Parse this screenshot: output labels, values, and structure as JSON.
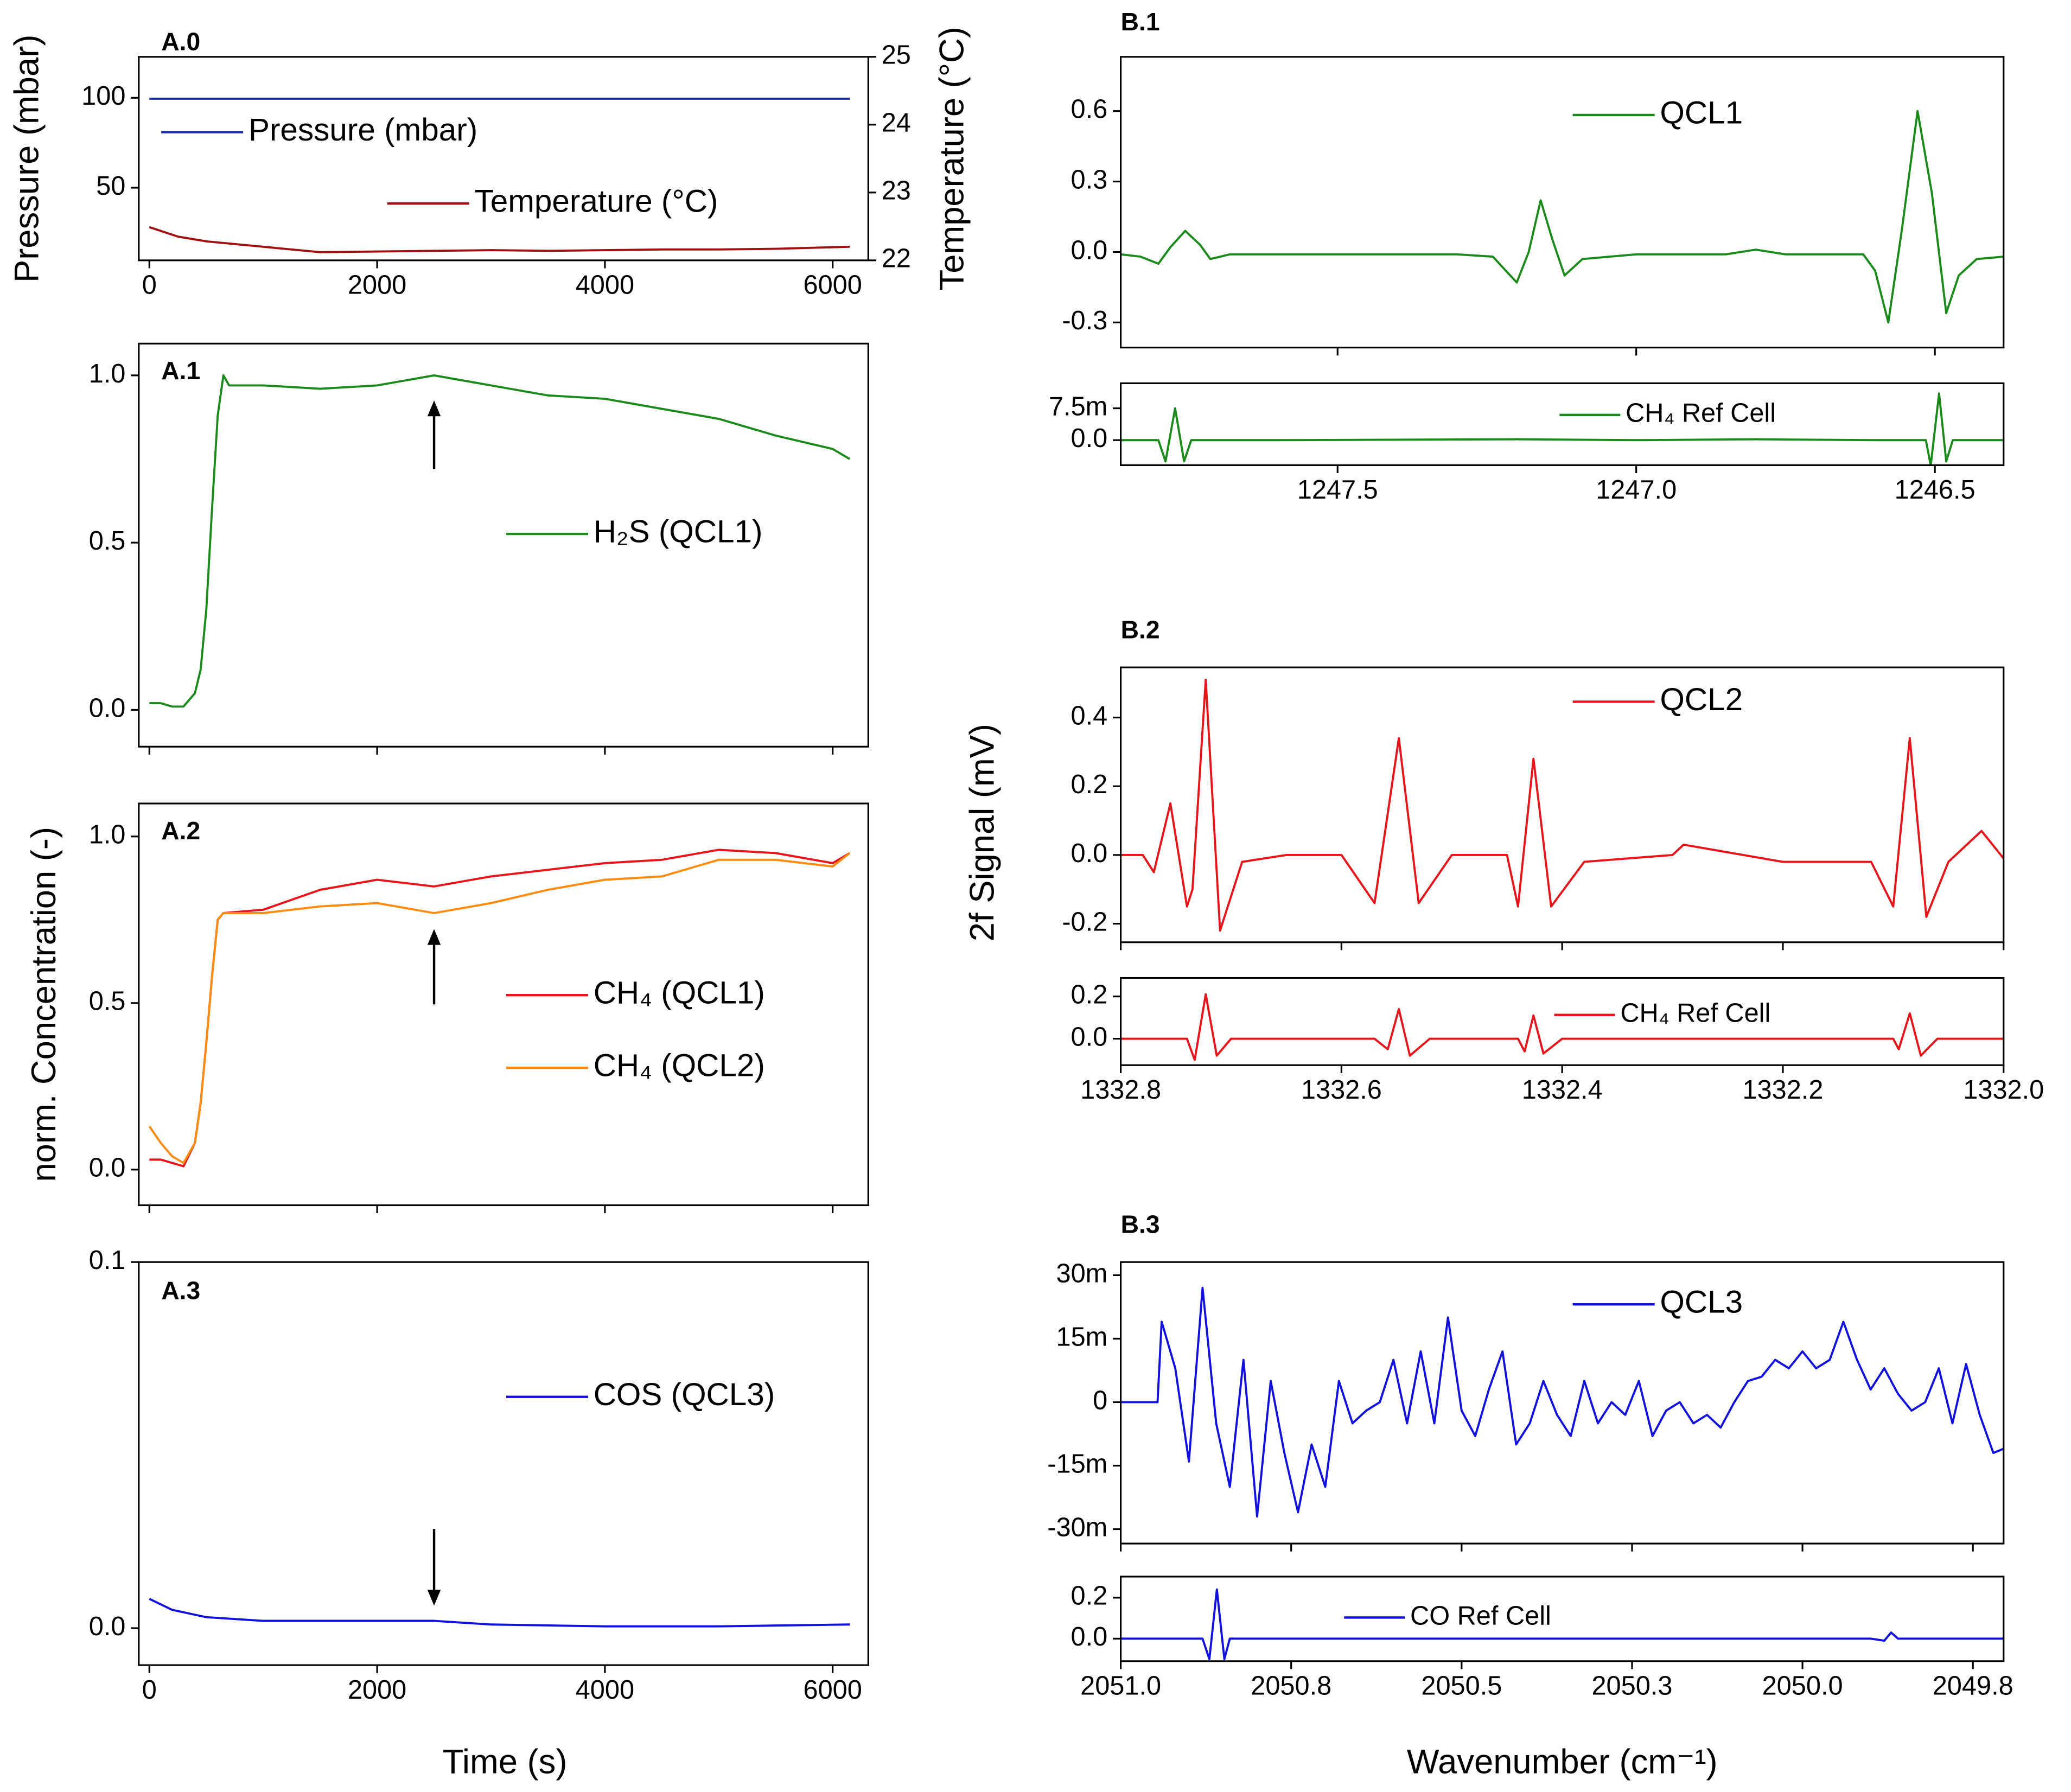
{
  "shared_labels": {
    "a_ylabel": "norm. Concentration (-)",
    "a_xlabel": "Time (s)",
    "b_ylabel": "2f Signal (mV)",
    "b_xlabel": "Wavenumber (cm⁻¹)"
  },
  "chart_data": [
    {
      "type": "line",
      "label": "A.0",
      "ylabel": "Pressure (mbar)",
      "y2label": "Temperature (°C)",
      "xlim": [
        -93,
        6313
      ],
      "xticks": [
        0,
        2000,
        4000,
        6000
      ],
      "ylim": [
        9.6,
        122.8
      ],
      "yticks": [
        50,
        100
      ],
      "y2lim": [
        22,
        25
      ],
      "y2ticks": [
        22,
        23,
        24,
        25
      ],
      "x": [
        0,
        250,
        500,
        1000,
        1500,
        2000,
        2500,
        3000,
        3500,
        4000,
        4500,
        5000,
        5500,
        6150
      ],
      "series": [
        {
          "name": "Pressure (mbar)",
          "color": "#1a2aa0",
          "values": [
            99.5,
            99.5,
            99.5,
            99.5,
            99.5,
            99.5,
            99.5,
            99.5,
            99.5,
            99.5,
            99.5,
            99.5,
            99.5,
            99.5
          ]
        },
        {
          "name": "Temperature (°C)",
          "color": "#a01010",
          "axis": "y2",
          "values": [
            22.49,
            22.35,
            22.28,
            22.2,
            22.12,
            22.13,
            22.14,
            22.15,
            22.14,
            22.15,
            22.16,
            22.16,
            22.17,
            22.2
          ]
        }
      ]
    },
    {
      "type": "line",
      "label": "A.1",
      "xlim": [
        -93,
        6313
      ],
      "xticks": [
        0,
        2000,
        4000,
        6000
      ],
      "xtick_labels": false,
      "ylim": [
        -0.11,
        1.095
      ],
      "yticks": [
        {
          "value": 0,
          "label": "0.0"
        },
        0.5,
        {
          "value": 1,
          "label": "1.0"
        }
      ],
      "arrow_x": 2500,
      "arrow_dir": "up",
      "x": [
        0,
        100,
        200,
        300,
        400,
        450,
        500,
        550,
        600,
        650,
        700,
        1000,
        1500,
        2000,
        2500,
        3000,
        3500,
        4000,
        4500,
        5000,
        5500,
        6000,
        6150
      ],
      "series": [
        {
          "name": "H₂S (QCL1)",
          "color": "#1a8a1a",
          "values": [
            0.02,
            0.02,
            0.01,
            0.01,
            0.05,
            0.12,
            0.3,
            0.6,
            0.88,
            1.0,
            0.97,
            0.97,
            0.96,
            0.97,
            1.0,
            0.97,
            0.94,
            0.93,
            0.9,
            0.87,
            0.82,
            0.78,
            0.75
          ]
        }
      ]
    },
    {
      "type": "line",
      "label": "A.2",
      "xlim": [
        -93,
        6313
      ],
      "xticks": [
        0,
        2000,
        4000,
        6000
      ],
      "xtick_labels": false,
      "ylim": [
        -0.107,
        1.099
      ],
      "yticks": [
        {
          "value": 0,
          "label": "0.0"
        },
        0.5,
        {
          "value": 1,
          "label": "1.0"
        }
      ],
      "arrow_x": 2500,
      "arrow_dir": "up",
      "x": [
        0,
        100,
        200,
        300,
        400,
        450,
        500,
        550,
        600,
        650,
        1000,
        1500,
        2000,
        2500,
        3000,
        3500,
        4000,
        4500,
        5000,
        5500,
        6000,
        6150
      ],
      "series": [
        {
          "name": "CH₄ (QCL1)",
          "color": "#e8141a",
          "values": [
            0.03,
            0.03,
            0.02,
            0.01,
            0.08,
            0.2,
            0.38,
            0.58,
            0.75,
            0.77,
            0.78,
            0.84,
            0.87,
            0.85,
            0.88,
            0.9,
            0.92,
            0.93,
            0.96,
            0.95,
            0.92,
            0.95
          ]
        },
        {
          "name": "CH₄ (QCL2)",
          "color": "#ff8c10",
          "values": [
            0.13,
            0.08,
            0.04,
            0.02,
            0.08,
            0.2,
            0.38,
            0.58,
            0.75,
            0.77,
            0.77,
            0.79,
            0.8,
            0.77,
            0.8,
            0.84,
            0.87,
            0.88,
            0.93,
            0.93,
            0.91,
            0.95
          ]
        }
      ]
    },
    {
      "type": "line",
      "label": "A.3",
      "xlim": [
        -93,
        6313
      ],
      "xticks": [
        0,
        2000,
        4000,
        6000
      ],
      "ylim": [
        -0.0101,
        0.1
      ],
      "yticks": [
        {
          "value": 0,
          "label": "0.0"
        },
        0.1
      ],
      "arrow_x": 2500,
      "arrow_dir": "down",
      "x": [
        0,
        200,
        500,
        1000,
        1500,
        2000,
        2500,
        3000,
        4000,
        5000,
        6150
      ],
      "series": [
        {
          "name": "COS (QCL3)",
          "color": "#1010e0",
          "values": [
            0.008,
            0.005,
            0.003,
            0.002,
            0.002,
            0.002,
            0.002,
            0.001,
            0.0005,
            0.0005,
            0.001
          ]
        }
      ]
    },
    {
      "type": "line",
      "label": "B.1",
      "xlim": [
        1247.863,
        1246.385
      ],
      "xticks": [
        1247.5,
        {
          "value": 1247,
          "label": "1247.0"
        },
        1246.5
      ],
      "xtick_labels": false,
      "ylim": [
        -0.407,
        0.831
      ],
      "yticks": [
        -0.3,
        {
          "value": 0,
          "label": "0.0"
        },
        0.3,
        0.6
      ],
      "x": [
        1247.863,
        1247.83,
        1247.8,
        1247.78,
        1247.755,
        1247.73,
        1247.713,
        1247.68,
        1247.5,
        1247.3,
        1247.24,
        1247.2,
        1247.18,
        1247.16,
        1247.14,
        1247.12,
        1247.09,
        1247.0,
        1246.85,
        1246.8,
        1246.75,
        1246.62,
        1246.6,
        1246.578,
        1246.555,
        1246.529,
        1246.505,
        1246.481,
        1246.46,
        1246.43,
        1246.385
      ],
      "series": [
        {
          "name": "QCL1",
          "color": "#1a8a1a",
          "values": [
            -0.01,
            -0.02,
            -0.05,
            0.02,
            0.09,
            0.03,
            -0.03,
            -0.01,
            -0.01,
            -0.01,
            -0.02,
            -0.13,
            0.0,
            0.22,
            0.05,
            -0.1,
            -0.03,
            -0.01,
            -0.01,
            0.01,
            -0.01,
            -0.01,
            -0.08,
            -0.3,
            0.1,
            0.6,
            0.25,
            -0.26,
            -0.1,
            -0.03,
            -0.02
          ]
        }
      ]
    },
    {
      "type": "line",
      "xlim": [
        1247.863,
        1246.385
      ],
      "xticks": [
        1247.5,
        {
          "value": 1247,
          "label": "1247.0"
        },
        1246.5
      ],
      "ylim": [
        -0.0059,
        0.0134
      ],
      "yticks": [
        {
          "value": 0,
          "label": "0.0"
        },
        {
          "value": 0.0075,
          "label": "7.5m"
        }
      ],
      "legend_size": "small",
      "x": [
        1247.863,
        1247.8,
        1247.788,
        1247.772,
        1247.757,
        1247.745,
        1247.6,
        1247.2,
        1247.0,
        1246.8,
        1246.6,
        1246.515,
        1246.507,
        1246.493,
        1246.481,
        1246.47,
        1246.385
      ],
      "series": [
        {
          "name": "CH₄ Ref Cell",
          "color": "#1a8a1a",
          "values": [
            0,
            0,
            -0.005,
            0.0075,
            -0.005,
            0,
            0,
            0.0002,
            0,
            0.0002,
            0,
            0,
            -0.006,
            0.011,
            -0.005,
            0,
            0
          ]
        }
      ]
    },
    {
      "type": "line",
      "label": "B.2",
      "xlim": [
        1332.8,
        1332.0
      ],
      "xticks": [
        1332.8,
        1332.6,
        1332.4,
        1332.2,
        {
          "value": 1332,
          "label": "1332.0"
        }
      ],
      "xtick_labels": false,
      "ylim": [
        -0.254,
        0.546
      ],
      "yticks": [
        -0.2,
        {
          "value": 0,
          "label": "0.0"
        },
        0.2,
        0.4
      ],
      "x": [
        1332.8,
        1332.78,
        1332.77,
        1332.755,
        1332.74,
        1332.735,
        1332.723,
        1332.71,
        1332.69,
        1332.65,
        1332.6,
        1332.57,
        1332.548,
        1332.53,
        1332.5,
        1332.45,
        1332.44,
        1332.426,
        1332.41,
        1332.38,
        1332.3,
        1332.29,
        1332.2,
        1332.12,
        1332.1,
        1332.085,
        1332.07,
        1332.05,
        1332.02,
        1332.01,
        1332.0
      ],
      "series": [
        {
          "name": "QCL2",
          "color": "#e8141a",
          "values": [
            0,
            0,
            -0.05,
            0.15,
            -0.15,
            -0.1,
            0.51,
            -0.22,
            -0.02,
            0.0,
            0.0,
            -0.14,
            0.34,
            -0.14,
            0.0,
            0.0,
            -0.15,
            0.28,
            -0.15,
            -0.02,
            0.0,
            0.03,
            -0.02,
            -0.02,
            -0.15,
            0.34,
            -0.18,
            -0.02,
            0.07,
            0.03,
            -0.01
          ]
        }
      ]
    },
    {
      "type": "line",
      "xlim": [
        1332.8,
        1332.0
      ],
      "xticks": [
        1332.8,
        1332.6,
        1332.4,
        1332.2,
        {
          "value": 1332,
          "label": "1332.0"
        }
      ],
      "ylim": [
        -0.125,
        0.2875
      ],
      "yticks": [
        {
          "value": 0,
          "label": "0.0"
        },
        0.2
      ],
      "legend_size": "small",
      "x": [
        1332.8,
        1332.74,
        1332.733,
        1332.723,
        1332.713,
        1332.7,
        1332.57,
        1332.558,
        1332.548,
        1332.538,
        1332.52,
        1332.44,
        1332.434,
        1332.426,
        1332.417,
        1332.4,
        1332.1,
        1332.095,
        1332.085,
        1332.075,
        1332.06,
        1332.0
      ],
      "series": [
        {
          "name": "CH₄ Ref Cell",
          "color": "#e8141a",
          "values": [
            0,
            0,
            -0.1,
            0.21,
            -0.08,
            0,
            0,
            -0.05,
            0.14,
            -0.08,
            0,
            0,
            -0.06,
            0.11,
            -0.07,
            0,
            0,
            -0.05,
            0.12,
            -0.08,
            0,
            0
          ]
        }
      ]
    },
    {
      "type": "line",
      "label": "B.3",
      "xlim": [
        2051.0,
        2049.705
      ],
      "xticks": [
        {
          "value": 2051,
          "label": "2051.0"
        },
        {
          "value": 2050.75,
          "label": "2050.8"
        },
        2050.5,
        {
          "value": 2050.25,
          "label": "2050.3"
        },
        {
          "value": 2050,
          "label": "2050.0"
        },
        {
          "value": 2049.75,
          "label": "2049.8"
        }
      ],
      "xtick_labels": false,
      "ylim": [
        -0.0334,
        0.0331
      ],
      "yticks": [
        {
          "value": -0.03,
          "label": "-30m"
        },
        {
          "value": -0.015,
          "label": "-15m"
        },
        0,
        {
          "value": 0.015,
          "label": "15m"
        },
        {
          "value": 0.03,
          "label": "30m"
        }
      ],
      "x": [
        2051.0,
        2050.946,
        2050.94,
        2050.92,
        2050.9,
        2050.88,
        2050.86,
        2050.84,
        2050.82,
        2050.8,
        2050.78,
        2050.76,
        2050.74,
        2050.72,
        2050.7,
        2050.68,
        2050.66,
        2050.64,
        2050.62,
        2050.6,
        2050.58,
        2050.56,
        2050.54,
        2050.52,
        2050.5,
        2050.48,
        2050.46,
        2050.44,
        2050.42,
        2050.4,
        2050.38,
        2050.36,
        2050.34,
        2050.32,
        2050.3,
        2050.28,
        2050.26,
        2050.24,
        2050.22,
        2050.2,
        2050.18,
        2050.16,
        2050.14,
        2050.12,
        2050.1,
        2050.08,
        2050.06,
        2050.04,
        2050.02,
        2050.0,
        2049.98,
        2049.96,
        2049.94,
        2049.92,
        2049.9,
        2049.88,
        2049.86,
        2049.84,
        2049.82,
        2049.8,
        2049.78,
        2049.76,
        2049.74,
        2049.72,
        2049.705
      ],
      "series": [
        {
          "name": "QCL3",
          "color": "#1010e0",
          "values": [
            0,
            0,
            0.019,
            0.008,
            -0.014,
            0.027,
            -0.005,
            -0.02,
            0.01,
            -0.027,
            0.005,
            -0.012,
            -0.026,
            -0.01,
            -0.02,
            0.005,
            -0.005,
            -0.002,
            0,
            0.01,
            -0.005,
            0.012,
            -0.005,
            0.02,
            -0.002,
            -0.008,
            0.003,
            0.012,
            -0.01,
            -0.005,
            0.005,
            -0.003,
            -0.008,
            0.005,
            -0.005,
            0,
            -0.003,
            0.005,
            -0.008,
            -0.002,
            0,
            -0.005,
            -0.003,
            -0.006,
            0,
            0.005,
            0.006,
            0.01,
            0.008,
            0.012,
            0.008,
            0.01,
            0.019,
            0.01,
            0.003,
            0.008,
            0.002,
            -0.002,
            0,
            0.008,
            -0.005,
            0.009,
            -0.003,
            -0.012,
            -0.011
          ]
        }
      ]
    },
    {
      "type": "line",
      "xlim": [
        2051.0,
        2049.705
      ],
      "xticks": [
        {
          "value": 2051,
          "label": "2051.0"
        },
        {
          "value": 2050.75,
          "label": "2050.8"
        },
        2050.5,
        {
          "value": 2050.25,
          "label": "2050.3"
        },
        {
          "value": 2050,
          "label": "2050.0"
        },
        {
          "value": 2049.75,
          "label": "2049.8"
        }
      ],
      "ylim": [
        -0.11,
        0.303
      ],
      "yticks": [
        {
          "value": 0,
          "label": "0.0"
        },
        0.2
      ],
      "legend_size": "small",
      "x": [
        2051.0,
        2050.88,
        2050.87,
        2050.859,
        2050.848,
        2050.84,
        2049.9,
        2049.88,
        2049.87,
        2049.86,
        2049.705
      ],
      "series": [
        {
          "name": "CO Ref Cell",
          "color": "#1010e0",
          "values": [
            0,
            0,
            -0.1,
            0.24,
            -0.1,
            0,
            0,
            -0.01,
            0.03,
            0,
            0
          ]
        }
      ]
    }
  ]
}
